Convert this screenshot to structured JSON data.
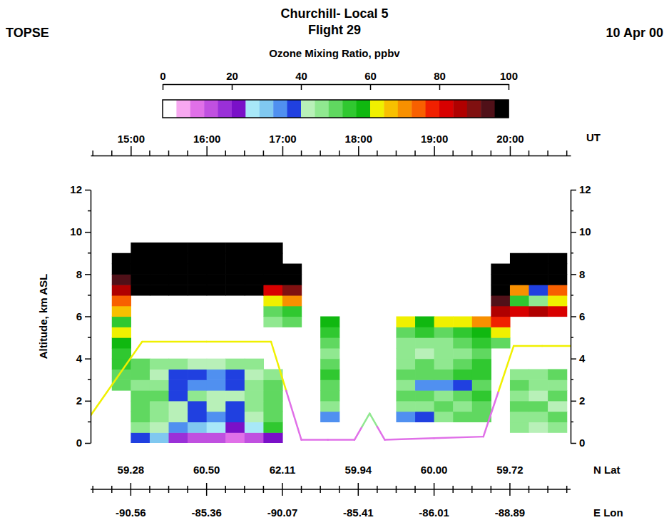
{
  "chart_data": {
    "type": "heatmap",
    "label_left": "TOPSE",
    "title": "Churchill- Local 5",
    "subtitle": "Flight 29",
    "date": "10 Apr 00",
    "xlabel": "UT",
    "ylabel": "Altitude, km ASL",
    "xlim": [
      14.47,
      20.8
    ],
    "xticks": [
      {
        "value": 15,
        "label": "15:00"
      },
      {
        "value": 16,
        "label": "16:00"
      },
      {
        "value": 17,
        "label": "17:00"
      },
      {
        "value": 18,
        "label": "18:00"
      },
      {
        "value": 19,
        "label": "19:00"
      },
      {
        "value": 20,
        "label": "20:00"
      }
    ],
    "x_minor_ticks": [
      14.5,
      14.75,
      15.25,
      15.5,
      15.75,
      16.25,
      16.5,
      16.75,
      17.25,
      17.5,
      17.75,
      18.25,
      18.5,
      18.75,
      19.25,
      19.5,
      19.75,
      20.25,
      20.5,
      20.75
    ],
    "ylim": [
      0,
      12
    ],
    "yticks": [
      0,
      2,
      4,
      6,
      8,
      10,
      12
    ],
    "y_minor_ticks": [
      1,
      3,
      5,
      7,
      9,
      11
    ],
    "lat_title": "N Lat",
    "lat_labels": [
      59.28,
      {
        "value": 60.5,
        "label": "60.50"
      },
      62.11,
      59.94,
      {
        "value": 60,
        "label": "60.00"
      },
      59.72
    ],
    "lon_title": "E Lon",
    "lon_labels": [
      -90.56,
      -85.36,
      -90.07,
      -85.41,
      -86.01,
      -88.89
    ],
    "x_edges": [
      14.75,
      15,
      15.25,
      15.5,
      15.75,
      16,
      16.25,
      16.5,
      16.75,
      17,
      17.25,
      17.5,
      17.75,
      18,
      18.25,
      18.5,
      18.75,
      19,
      19.25,
      19.5,
      19.75,
      20,
      20.25,
      20.5,
      20.75
    ],
    "y_edges": [
      0,
      0.5,
      1,
      1.5,
      2,
      2.5,
      3,
      3.5,
      4,
      4.5,
      5,
      5.5,
      6,
      6.5,
      7,
      7.5,
      8,
      8.5,
      9,
      9.5,
      10
    ],
    "cells": [
      [
        null,
        38,
        30,
        18,
        14,
        12,
        10,
        14,
        22,
        null,
        null,
        null,
        null,
        null,
        null,
        null,
        null,
        null,
        null,
        null,
        null,
        null,
        null,
        null
      ],
      [
        null,
        45,
        40,
        34,
        30,
        24,
        22,
        26,
        55,
        null,
        null,
        null,
        null,
        null,
        null,
        null,
        null,
        null,
        null,
        null,
        null,
        45,
        40,
        45
      ],
      [
        null,
        48,
        44,
        40,
        36,
        34,
        38,
        42,
        50,
        null,
        null,
        34,
        null,
        null,
        null,
        35,
        36,
        46,
        48,
        50,
        null,
        44,
        44,
        48
      ],
      [
        null,
        50,
        46,
        42,
        38,
        42,
        36,
        44,
        48,
        null,
        null,
        46,
        null,
        null,
        null,
        44,
        46,
        48,
        47,
        50,
        null,
        48,
        48,
        42
      ],
      [
        null,
        48,
        50,
        38,
        44,
        40,
        42,
        46,
        50,
        null,
        null,
        48,
        null,
        null,
        null,
        48,
        50,
        47,
        49,
        52,
        null,
        45,
        42,
        50
      ],
      [
        48,
        46,
        44,
        36,
        35,
        34,
        38,
        44,
        48,
        null,
        null,
        50,
        null,
        null,
        null,
        46,
        34,
        34,
        36,
        48,
        null,
        50,
        46,
        45
      ],
      [
        50,
        48,
        42,
        38,
        36,
        34,
        36,
        42,
        46,
        null,
        null,
        52,
        null,
        null,
        null,
        50,
        48,
        50,
        52,
        54,
        null,
        44,
        45,
        48
      ],
      [
        52,
        50,
        46,
        44,
        42,
        40,
        44,
        46,
        null,
        null,
        null,
        50,
        null,
        null,
        null,
        46,
        48,
        46,
        48,
        52,
        null,
        null,
        null,
        null
      ],
      [
        55,
        null,
        null,
        null,
        null,
        null,
        null,
        null,
        null,
        null,
        null,
        46,
        null,
        null,
        null,
        44,
        42,
        44,
        46,
        50,
        null,
        null,
        null,
        null
      ],
      [
        58,
        null,
        null,
        null,
        null,
        null,
        null,
        null,
        null,
        null,
        null,
        48,
        null,
        null,
        null,
        46,
        45,
        47,
        48,
        54,
        50,
        null,
        null,
        null
      ],
      [
        62,
        null,
        null,
        null,
        null,
        null,
        null,
        null,
        null,
        null,
        null,
        52,
        null,
        null,
        null,
        50,
        52,
        50,
        52,
        58,
        62,
        null,
        null,
        null
      ],
      [
        55,
        null,
        null,
        null,
        null,
        null,
        null,
        null,
        45,
        50,
        null,
        56,
        null,
        null,
        null,
        60,
        58,
        62,
        60,
        70,
        76,
        null,
        null,
        null
      ],
      [
        65,
        null,
        null,
        null,
        null,
        null,
        null,
        null,
        50,
        55,
        null,
        null,
        null,
        null,
        null,
        null,
        null,
        null,
        null,
        null,
        86,
        80,
        84,
        80
      ],
      [
        75,
        null,
        null,
        null,
        null,
        null,
        null,
        null,
        60,
        70,
        null,
        null,
        null,
        null,
        null,
        null,
        null,
        null,
        null,
        null,
        95,
        55,
        45,
        60
      ],
      [
        85,
        120,
        120,
        120,
        120,
        120,
        120,
        120,
        80,
        90,
        null,
        null,
        null,
        null,
        null,
        null,
        null,
        null,
        null,
        null,
        110,
        70,
        38,
        75
      ],
      [
        95,
        120,
        120,
        120,
        120,
        120,
        120,
        120,
        110,
        110,
        null,
        null,
        null,
        null,
        null,
        null,
        null,
        null,
        null,
        null,
        120,
        110,
        100,
        110
      ],
      [
        100,
        120,
        120,
        120,
        120,
        120,
        120,
        120,
        120,
        120,
        null,
        null,
        null,
        null,
        null,
        null,
        null,
        null,
        null,
        null,
        120,
        120,
        120,
        120
      ],
      [
        100,
        120,
        120,
        120,
        120,
        120,
        120,
        120,
        120,
        null,
        null,
        null,
        null,
        null,
        null,
        null,
        null,
        null,
        null,
        null,
        null,
        120,
        120,
        120
      ],
      [
        null,
        120,
        120,
        120,
        120,
        120,
        120,
        120,
        120,
        null,
        null,
        null,
        null,
        null,
        null,
        null,
        null,
        null,
        null,
        null,
        null,
        null,
        null,
        null
      ],
      [
        null,
        null,
        null,
        null,
        null,
        null,
        null,
        null,
        null,
        null,
        null,
        null,
        null,
        null,
        null,
        null,
        null,
        null,
        null,
        null,
        null,
        null,
        null,
        null
      ]
    ],
    "colorbar": {
      "title": "Ozone Mixing Ratio, ppbv",
      "range": [
        0,
        100
      ],
      "ticks": [
        0,
        20,
        40,
        60,
        80,
        100
      ],
      "colors": [
        "#ffffff",
        "#f7a8f0",
        "#e070e8",
        "#c050e0",
        "#9a30d8",
        "#7a10c8",
        "#a8e8f8",
        "#80c8f0",
        "#5090f0",
        "#2040e0",
        "#b8f0b8",
        "#90e890",
        "#60d860",
        "#30c830",
        "#10b810",
        "#f0f000",
        "#f8c000",
        "#f89000",
        "#f86000",
        "#f02000",
        "#d80000",
        "#b00000",
        "#801010",
        "#501018",
        "#000000"
      ]
    },
    "track": {
      "x": [
        14.47,
        15.15,
        16.85,
        17.25,
        17.95,
        18.15,
        18.35,
        19.65,
        20.05,
        20.8
      ],
      "altitude": [
        1.3,
        4.8,
        4.8,
        0.15,
        0.15,
        1.4,
        0.15,
        0.3,
        4.6,
        4.6
      ],
      "ozone": [
        62,
        62,
        62,
        10,
        8,
        45,
        8,
        10,
        62,
        62
      ]
    }
  }
}
